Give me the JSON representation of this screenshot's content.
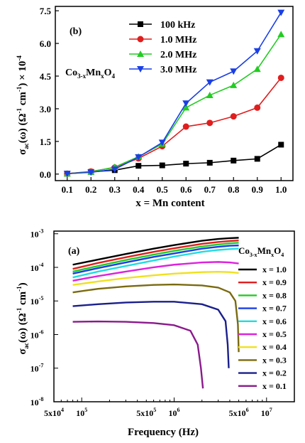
{
  "chart_data": [
    {
      "type": "line",
      "panel_label": "(b)",
      "title": "",
      "annotation_main": "Co",
      "annotation_sub1": "3-x",
      "annotation_mid": "Mn",
      "annotation_sub2": "x",
      "annotation_end": "O",
      "annotation_sub3": "4",
      "xlabel": "x = Mn content",
      "ylabel": "σac(ω) (Ω⁻¹ cm⁻¹) × 10⁻⁴",
      "ylabel_parts": {
        "sigma": "σ",
        "sub": "ac",
        "mid": "(ω) (Ω",
        "sup1": "-1",
        "cm": " cm",
        "sup2": "-1",
        "times": ") × 10",
        "sup3": "-4"
      },
      "xlim": [
        0.05,
        1.05
      ],
      "ylim": [
        -0.3,
        7.7
      ],
      "xticks": [
        0.1,
        0.2,
        0.3,
        0.4,
        0.5,
        0.6,
        0.7,
        0.8,
        0.9,
        1.0
      ],
      "xtick_labels": [
        "0.1",
        "0.2",
        "0.3",
        "0.4",
        "0.5",
        "0.6",
        "0.7",
        "0.8",
        "0.9",
        "1.0"
      ],
      "yticks": [
        0.0,
        1.5,
        3.0,
        4.5,
        6.0,
        7.5
      ],
      "ytick_labels": [
        "0.0",
        "1.5",
        "3.0",
        "4.5",
        "6.0",
        "7.5"
      ],
      "grid": false,
      "legend_position": "top-center",
      "x": [
        0.1,
        0.2,
        0.3,
        0.4,
        0.5,
        0.6,
        0.7,
        0.8,
        0.9,
        1.0
      ],
      "series": [
        {
          "name": "100 kHz",
          "color": "#000000",
          "marker": "square",
          "values": [
            0.02,
            0.1,
            0.18,
            0.38,
            0.4,
            0.48,
            0.52,
            0.62,
            0.7,
            1.35
          ]
        },
        {
          "name": "1.0 MHz",
          "color": "#e01e1e",
          "marker": "circle",
          "values": [
            0.02,
            0.12,
            0.3,
            0.72,
            1.28,
            2.18,
            2.35,
            2.65,
            3.05,
            4.42
          ]
        },
        {
          "name": "2.0 MHz",
          "color": "#22cc22",
          "marker": "triangle-up",
          "values": [
            0.02,
            0.1,
            0.32,
            0.8,
            1.38,
            3.05,
            3.62,
            4.08,
            4.82,
            6.42
          ]
        },
        {
          "name": "3.0 MHz",
          "color": "#1a3fe6",
          "marker": "triangle-down",
          "values": [
            0.02,
            0.08,
            0.22,
            0.78,
            1.45,
            3.25,
            4.22,
            4.72,
            5.65,
            7.42
          ]
        }
      ]
    },
    {
      "type": "line",
      "panel_label": "(a)",
      "title": "",
      "xlabel": "Frequency (Hz)",
      "ylabel": "σac(ω) (Ω⁻¹ cm⁻¹)",
      "ylabel_parts": {
        "sigma": "σ",
        "sub": "ac",
        "mid": "(ω) (Ω",
        "sup1": "-1",
        "cm": " cm",
        "sup2": "-1",
        "end": ")"
      },
      "legend_title": "Co3-xMnxO4",
      "xscale": "log",
      "yscale": "log",
      "xlim": [
        50000,
        20000000
      ],
      "ylim": [
        1e-08,
        0.0012
      ],
      "xtick_labels": [
        {
          "value": 50000,
          "base": "5x10",
          "exp": "4"
        },
        {
          "value": 100000,
          "base": "10",
          "exp": "5"
        },
        {
          "value": 500000,
          "base": "5x10",
          "exp": "5"
        },
        {
          "value": 1000000,
          "base": "10",
          "exp": "6"
        },
        {
          "value": 5000000,
          "base": "5x10",
          "exp": "6"
        },
        {
          "value": 10000000,
          "base": "10",
          "exp": "7"
        }
      ],
      "ytick_labels": [
        {
          "value": 0.001,
          "base": "10",
          "exp": "-3"
        },
        {
          "value": 0.0001,
          "base": "10",
          "exp": "-4"
        },
        {
          "value": 1e-05,
          "base": "10",
          "exp": "-5"
        },
        {
          "value": 1e-06,
          "base": "10",
          "exp": "-6"
        },
        {
          "value": 1e-07,
          "base": "10",
          "exp": "-7"
        },
        {
          "value": 1e-08,
          "base": "10",
          "exp": "-8"
        }
      ],
      "grid": false,
      "legend_position": "right",
      "series": [
        {
          "name": "x = 1.0",
          "color": "#000000",
          "x": [
            80000,
            150000,
            300000,
            600000,
            1000000,
            2000000,
            3000000,
            4000000,
            5000000
          ],
          "y": [
            0.00012,
            0.00017,
            0.00025,
            0.00036,
            0.00046,
            0.00062,
            0.0007,
            0.00074,
            0.00076
          ]
        },
        {
          "name": "x = 0.9",
          "color": "#e01e1e",
          "x": [
            80000,
            150000,
            300000,
            600000,
            1000000,
            2000000,
            3000000,
            4000000,
            5000000
          ],
          "y": [
            9e-05,
            0.000135,
            0.0002,
            0.00029,
            0.00037,
            0.0005,
            0.00057,
            0.00061,
            0.00063
          ]
        },
        {
          "name": "x = 0.8",
          "color": "#22cc22",
          "x": [
            80000,
            150000,
            300000,
            600000,
            1000000,
            2000000,
            3000000,
            4000000,
            5000000
          ],
          "y": [
            7.5e-05,
            0.00011,
            0.000165,
            0.00024,
            0.00031,
            0.00042,
            0.00048,
            0.00052,
            0.00054
          ]
        },
        {
          "name": "x = 0.7",
          "color": "#1a3fe6",
          "x": [
            80000,
            150000,
            300000,
            600000,
            1000000,
            2000000,
            3000000,
            4000000,
            5000000
          ],
          "y": [
            6.5e-05,
            9.5e-05,
            0.00014,
            0.000205,
            0.00026,
            0.00036,
            0.00041,
            0.00044,
            0.00045
          ]
        },
        {
          "name": "x = 0.6",
          "color": "#22dddd",
          "x": [
            80000,
            150000,
            300000,
            600000,
            1000000,
            2000000,
            3000000,
            4000000,
            5000000
          ],
          "y": [
            5e-05,
            7.5e-05,
            0.00011,
            0.00016,
            0.00021,
            0.00029,
            0.00033,
            0.00035,
            0.00036
          ]
        },
        {
          "name": "x = 0.5",
          "color": "#dd22dd",
          "x": [
            80000,
            150000,
            300000,
            600000,
            1000000,
            2000000,
            3000000,
            4000000,
            5000000
          ],
          "y": [
            4e-05,
            5.5e-05,
            7.5e-05,
            0.0001,
            0.00012,
            0.00014,
            0.000145,
            0.00014,
            0.00013
          ]
        },
        {
          "name": "x = 0.4",
          "color": "#f0e020",
          "x": [
            80000,
            150000,
            300000,
            600000,
            1000000,
            2000000,
            3000000,
            4000000,
            5000000
          ],
          "y": [
            3e-05,
            3.8e-05,
            4.8e-05,
            5.8e-05,
            6.5e-05,
            7.2e-05,
            7.4e-05,
            7.2e-05,
            6.8e-05
          ]
        },
        {
          "name": "x = 0.3",
          "color": "#7a6a10",
          "x": [
            80000,
            150000,
            300000,
            600000,
            1000000,
            2000000,
            3000000,
            4000000,
            4600000,
            4900000,
            5000000
          ],
          "y": [
            1.8e-05,
            2.3e-05,
            2.7e-05,
            3e-05,
            3.1e-05,
            2.9e-05,
            2.5e-05,
            1.8e-05,
            1e-05,
            2e-06,
            3e-07
          ]
        },
        {
          "name": "x = 0.2",
          "color": "#1a1f8c",
          "x": [
            80000,
            150000,
            300000,
            600000,
            1000000,
            2000000,
            3000000,
            3600000,
            3800000,
            3900000
          ],
          "y": [
            7e-06,
            8e-06,
            9e-06,
            9.5e-06,
            9.5e-06,
            8e-06,
            5.5e-06,
            2.5e-06,
            5e-07,
            1e-07
          ]
        },
        {
          "name": "x = 0.1",
          "color": "#8a1a8c",
          "x": [
            80000,
            150000,
            300000,
            600000,
            1000000,
            1500000,
            1800000,
            1950000,
            2050000
          ],
          "y": [
            2.4e-06,
            2.45e-06,
            2.4e-06,
            2.2e-06,
            1.9e-06,
            1.3e-06,
            5e-07,
            1e-07,
            2.5e-08
          ]
        }
      ]
    }
  ]
}
